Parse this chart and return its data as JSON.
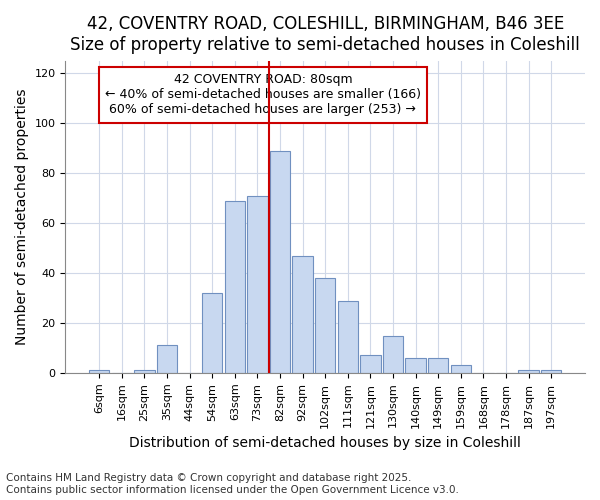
{
  "title": "42, COVENTRY ROAD, COLESHILL, BIRMINGHAM, B46 3EE",
  "subtitle": "Size of property relative to semi-detached houses in Coleshill",
  "xlabel": "Distribution of semi-detached houses by size in Coleshill",
  "ylabel": "Number of semi-detached properties",
  "categories": [
    "6sqm",
    "16sqm",
    "25sqm",
    "35sqm",
    "44sqm",
    "54sqm",
    "63sqm",
    "73sqm",
    "82sqm",
    "92sqm",
    "102sqm",
    "111sqm",
    "121sqm",
    "130sqm",
    "140sqm",
    "149sqm",
    "159sqm",
    "168sqm",
    "178sqm",
    "187sqm",
    "197sqm"
  ],
  "values": [
    1,
    0,
    1,
    11,
    0,
    32,
    69,
    71,
    89,
    47,
    38,
    29,
    7,
    15,
    6,
    6,
    3,
    0,
    0,
    1,
    1
  ],
  "bar_color": "#c8d8f0",
  "bar_edge_color": "#7090c0",
  "property_label": "42 COVENTRY ROAD: 80sqm",
  "pct_smaller": 40,
  "pct_larger": 60,
  "count_smaller": 166,
  "count_larger": 253,
  "vline_color": "#cc0000",
  "annotation_box_color": "#cc0000",
  "vline_index": 8,
  "ylim": [
    0,
    125
  ],
  "yticks": [
    0,
    20,
    40,
    60,
    80,
    100,
    120
  ],
  "title_fontsize": 12,
  "subtitle_fontsize": 10,
  "axis_label_fontsize": 10,
  "tick_fontsize": 8,
  "annotation_fontsize": 9,
  "footnote": "Contains HM Land Registry data © Crown copyright and database right 2025.\nContains public sector information licensed under the Open Government Licence v3.0.",
  "footnote_fontsize": 7.5,
  "bg_color": "#ffffff",
  "grid_color": "#d0d8e8"
}
